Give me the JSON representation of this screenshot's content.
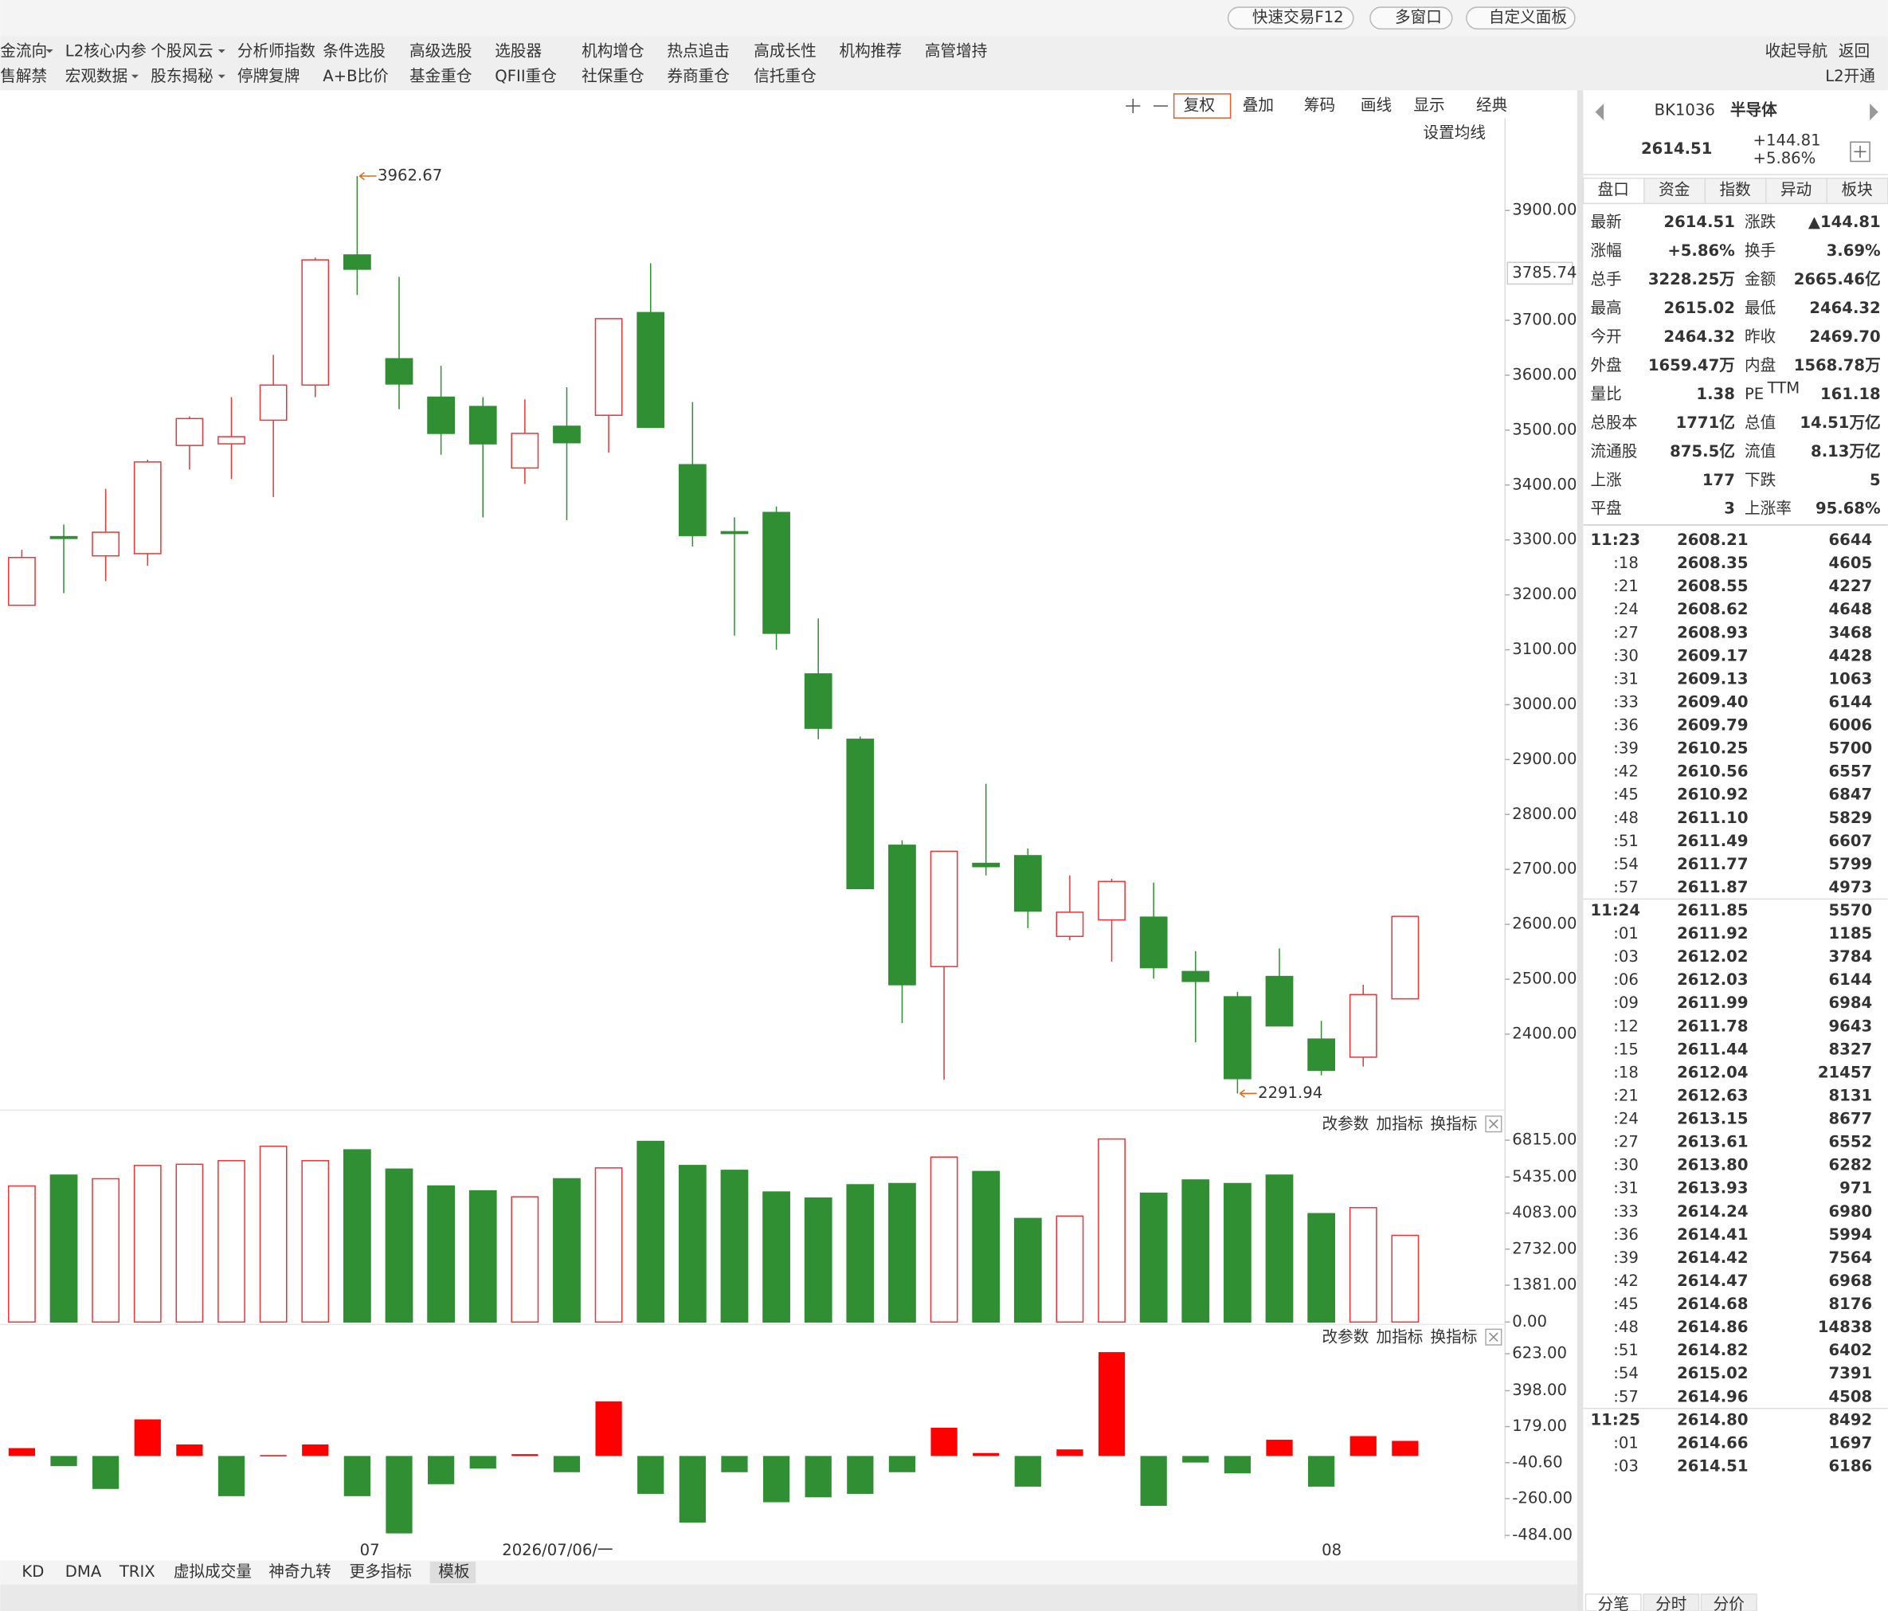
{
  "topbar": {
    "buttons": [
      "快速交易F12",
      "多窗口",
      "自定义面板"
    ]
  },
  "menu": {
    "row1": [
      "金流向",
      "L2核心内参",
      "个股风云",
      "分析师指数",
      "条件选股",
      "高级选股",
      "选股器",
      "机构增仓",
      "热点追击",
      "高成长性",
      "机构推荐",
      "高管增持"
    ],
    "row2": [
      "售解禁",
      "宏观数据",
      "股东揭秘",
      "停牌复牌",
      "A+B比价",
      "基金重仓",
      "QFII重仓",
      "社保重仓",
      "券商重仓",
      "信托重仓"
    ],
    "right": [
      "收起导航",
      "返回"
    ],
    "l2": "L2开通"
  },
  "toolbar": {
    "items": [
      "复权",
      "叠加",
      "筹码",
      "画线",
      "显示",
      "经典"
    ],
    "ma_setting": "设置均线"
  },
  "kline": {
    "ylim": [
      2266,
      4064
    ],
    "yticks": [
      {
        "value": 2400,
        "label": "2400.00"
      },
      {
        "value": 2500,
        "label": "2500.00"
      },
      {
        "value": 2600,
        "label": "2600.00"
      },
      {
        "value": 2700,
        "label": "2700.00"
      },
      {
        "value": 2800,
        "label": "2800.00"
      },
      {
        "value": 2900,
        "label": "2900.00"
      },
      {
        "value": 3000,
        "label": "3000.00"
      },
      {
        "value": 3100,
        "label": "3100.00"
      },
      {
        "value": 3200,
        "label": "3200.00"
      },
      {
        "value": 3300,
        "label": "3300.00"
      },
      {
        "value": 3400,
        "label": "3400.00"
      },
      {
        "value": 3500,
        "label": "3500.00"
      },
      {
        "value": 3600,
        "label": "3600.00"
      },
      {
        "value": 3700,
        "label": "3700.00"
      },
      {
        "value": 3900,
        "label": "3900.00"
      }
    ],
    "marker": 3785.74,
    "candles": [
      {
        "open": 3181,
        "high": 3282,
        "low": 3181,
        "close": 3268
      },
      {
        "open": 3306,
        "high": 3328,
        "low": 3203,
        "close": 3305
      },
      {
        "open": 3271,
        "high": 3393,
        "low": 3225,
        "close": 3314
      },
      {
        "open": 3275,
        "high": 3446,
        "low": 3253,
        "close": 3442
      },
      {
        "open": 3472,
        "high": 3525,
        "low": 3428,
        "close": 3521
      },
      {
        "open": 3475,
        "high": 3560,
        "low": 3411,
        "close": 3488
      },
      {
        "open": 3518,
        "high": 3637,
        "low": 3378,
        "close": 3582
      },
      {
        "open": 3582,
        "high": 3814,
        "low": 3560,
        "close": 3810
      },
      {
        "open": 3819,
        "high": 3962.67,
        "low": 3746,
        "close": 3793
      },
      {
        "open": 3630,
        "high": 3779,
        "low": 3538,
        "close": 3584
      },
      {
        "open": 3560,
        "high": 3617,
        "low": 3455,
        "close": 3494
      },
      {
        "open": 3543,
        "high": 3560,
        "low": 3341,
        "close": 3475
      },
      {
        "open": 3431,
        "high": 3556,
        "low": 3402,
        "close": 3494
      },
      {
        "open": 3507,
        "high": 3578,
        "low": 3336,
        "close": 3477
      },
      {
        "open": 3527,
        "high": 3703,
        "low": 3459,
        "close": 3703
      },
      {
        "open": 3714,
        "high": 3804,
        "low": 3505,
        "close": 3505
      },
      {
        "open": 3437,
        "high": 3551,
        "low": 3288,
        "close": 3308
      },
      {
        "open": 3315,
        "high": 3341,
        "low": 3126,
        "close": 3312
      },
      {
        "open": 3350,
        "high": 3361,
        "low": 3100,
        "close": 3130
      },
      {
        "open": 3056,
        "high": 3157,
        "low": 2937,
        "close": 2957
      },
      {
        "open": 2937,
        "high": 2942,
        "low": 2665,
        "close": 2665
      },
      {
        "open": 2744,
        "high": 2753,
        "low": 2420,
        "close": 2490
      },
      {
        "open": 2523,
        "high": 2733,
        "low": 2317,
        "close": 2733
      },
      {
        "open": 2711,
        "high": 2856,
        "low": 2689,
        "close": 2705
      },
      {
        "open": 2725,
        "high": 2738,
        "low": 2593,
        "close": 2624
      },
      {
        "open": 2578,
        "high": 2689,
        "low": 2571,
        "close": 2622
      },
      {
        "open": 2608,
        "high": 2683,
        "low": 2532,
        "close": 2678
      },
      {
        "open": 2613,
        "high": 2676,
        "low": 2501,
        "close": 2521
      },
      {
        "open": 2514,
        "high": 2551,
        "low": 2385,
        "close": 2496
      },
      {
        "open": 2468,
        "high": 2477,
        "low": 2291.94,
        "close": 2319
      },
      {
        "open": 2505,
        "high": 2556,
        "low": 2415,
        "close": 2415
      },
      {
        "open": 2391,
        "high": 2424,
        "low": 2325,
        "close": 2334
      },
      {
        "open": 2358,
        "high": 2490,
        "low": 2341,
        "close": 2472
      },
      {
        "open": 2464.32,
        "high": 2615.02,
        "low": 2464.32,
        "close": 2614.51
      }
    ]
  },
  "volume": {
    "ylim": [
      0,
      7130
    ],
    "yticks": [
      {
        "value": 0,
        "label": "0.00"
      },
      {
        "value": 1381,
        "label": "1381.00"
      },
      {
        "value": 2732,
        "label": "2732.00"
      },
      {
        "value": 4083,
        "label": "4083.00"
      },
      {
        "value": 5435,
        "label": "5435.00"
      },
      {
        "value": 6815,
        "label": "6815.00"
      }
    ],
    "values": [
      5100,
      5506,
      5370,
      5867,
      5912,
      6047,
      6589,
      6047,
      6454,
      5732,
      5100,
      4919,
      4694,
      5370,
      5777,
      6770,
      5867,
      5686,
      4874,
      4648,
      5145,
      5190,
      6183,
      5641,
      3881,
      3971,
      6860,
      4829,
      5325,
      5190,
      5506,
      4062,
      4287,
      3249
    ]
  },
  "macd": {
    "ylim": [
      -490,
      655
    ],
    "yticks": [
      {
        "value": 623,
        "label": "623.00"
      },
      {
        "value": 398,
        "label": "398.00"
      },
      {
        "value": 179,
        "label": "179.00"
      },
      {
        "value": -40.6,
        "label": "-40.60"
      },
      {
        "value": -260,
        "label": "-260.00"
      },
      {
        "value": -484,
        "label": "-484.00"
      }
    ],
    "values": [
      48,
      -62,
      -201,
      223,
      70,
      -245,
      5,
      70,
      -245,
      -472,
      -172,
      -77,
      11,
      -99,
      333,
      -231,
      -406,
      -99,
      -282,
      -252,
      -231,
      -99,
      172,
      18,
      -187,
      40,
      633,
      -304,
      -40,
      -106,
      99,
      -187,
      121,
      92
    ]
  },
  "pane_buttons": [
    "改参数",
    "加指标",
    "换指标"
  ],
  "xlabels": [
    "07",
    "2026/07/06/一",
    "08"
  ],
  "indicator_tabs": [
    "KD",
    "DMA",
    "TRIX",
    "虚拟成交量",
    "神奇九转",
    "更多指标",
    "模板"
  ],
  "quote": {
    "code": "BK1036",
    "name": "半导体",
    "price": "2614.51",
    "change": "+144.81",
    "pct": "+5.86%",
    "tabs": [
      "盘口",
      "资金",
      "指数",
      "异动",
      "板块"
    ],
    "rows": [
      {
        "l1": "最新",
        "v1": "2614.51",
        "c1": "#e0202a",
        "l2": "涨跌",
        "v2": "▲144.81",
        "c2": "#e0202a"
      },
      {
        "l1": "涨幅",
        "v1": "+5.86%",
        "c1": "#e0202a",
        "l2": "换手",
        "v2": "3.69%",
        "c2": "#222"
      },
      {
        "l1": "总手",
        "v1": "3228.25万",
        "c1": "#222",
        "l2": "金额",
        "v2": "2665.46亿",
        "c2": "#1a6fc4"
      },
      {
        "l1": "最高",
        "v1": "2615.02",
        "c1": "#e0202a",
        "l2": "最低",
        "v2": "2464.32",
        "c2": "#0a9a0a"
      },
      {
        "l1": "今开",
        "v1": "2464.32",
        "c1": "#0a9a0a",
        "l2": "昨收",
        "v2": "2469.70",
        "c2": "#222"
      },
      {
        "l1": "外盘",
        "v1": "1659.47万",
        "c1": "#e0202a",
        "l2": "内盘",
        "v2": "1568.78万",
        "c2": "#0a9a0a"
      },
      {
        "l1": "量比",
        "v1": "1.38",
        "c1": "#e0202a",
        "l2": "PE",
        "l2sup": "TTM",
        "v2": "161.18",
        "c2": "#222"
      },
      {
        "l1": "总股本",
        "v1": "1771亿",
        "c1": "#222",
        "l2": "总值",
        "v2": "14.51万亿",
        "c2": "#222"
      },
      {
        "l1": "流通股",
        "v1": "875.5亿",
        "c1": "#222",
        "l2": "流值",
        "v2": "8.13万亿",
        "c2": "#222"
      },
      {
        "l1": "上涨",
        "v1": "177",
        "c1": "#e0202a",
        "l2": "下跌",
        "v2": "5",
        "c2": "#0a9a0a"
      },
      {
        "l1": "平盘",
        "v1": "3",
        "c1": "#222",
        "l2": "上涨率",
        "v2": "95.68%",
        "c2": "#222"
      }
    ],
    "ticks": [
      {
        "t": "11:23",
        "p": "2608.21",
        "v": "6644",
        "c": "r"
      },
      {
        "t": ":18",
        "p": "2608.35",
        "v": "4605",
        "c": "r"
      },
      {
        "t": ":21",
        "p": "2608.55",
        "v": "4227",
        "c": "r"
      },
      {
        "t": ":24",
        "p": "2608.62",
        "v": "4648",
        "c": "r"
      },
      {
        "t": ":27",
        "p": "2608.93",
        "v": "3468",
        "c": "r"
      },
      {
        "t": ":30",
        "p": "2609.17",
        "v": "4428",
        "c": "r"
      },
      {
        "t": ":31",
        "p": "2609.13",
        "v": "1063",
        "c": "g"
      },
      {
        "t": ":33",
        "p": "2609.40",
        "v": "6144",
        "c": "r"
      },
      {
        "t": ":36",
        "p": "2609.79",
        "v": "6006",
        "c": "r"
      },
      {
        "t": ":39",
        "p": "2610.25",
        "v": "5700",
        "c": "r"
      },
      {
        "t": ":42",
        "p": "2610.56",
        "v": "6557",
        "c": "r"
      },
      {
        "t": ":45",
        "p": "2610.92",
        "v": "6847",
        "c": "r"
      },
      {
        "t": ":48",
        "p": "2611.10",
        "v": "5829",
        "c": "r"
      },
      {
        "t": ":51",
        "p": "2611.49",
        "v": "6607",
        "c": "r"
      },
      {
        "t": ":54",
        "p": "2611.77",
        "v": "5799",
        "c": "r"
      },
      {
        "t": ":57",
        "p": "2611.87",
        "v": "4973",
        "c": "r"
      },
      {
        "t": "11:24",
        "p": "2611.85",
        "v": "5570",
        "c": "g"
      },
      {
        "t": ":01",
        "p": "2611.92",
        "v": "1185",
        "c": "r"
      },
      {
        "t": ":03",
        "p": "2612.02",
        "v": "3784",
        "c": "r"
      },
      {
        "t": ":06",
        "p": "2612.03",
        "v": "6144",
        "c": "r"
      },
      {
        "t": ":09",
        "p": "2611.99",
        "v": "6984",
        "c": "g"
      },
      {
        "t": ":12",
        "p": "2611.78",
        "v": "9643",
        "c": "g"
      },
      {
        "t": ":15",
        "p": "2611.44",
        "v": "8327",
        "c": "g"
      },
      {
        "t": ":18",
        "p": "2612.04",
        "v": "21457",
        "c": "r"
      },
      {
        "t": ":21",
        "p": "2612.63",
        "v": "8131",
        "c": "r"
      },
      {
        "t": ":24",
        "p": "2613.15",
        "v": "8677",
        "c": "r"
      },
      {
        "t": ":27",
        "p": "2613.61",
        "v": "6552",
        "c": "r"
      },
      {
        "t": ":30",
        "p": "2613.80",
        "v": "6282",
        "c": "r"
      },
      {
        "t": ":31",
        "p": "2613.93",
        "v": "971",
        "c": "r"
      },
      {
        "t": ":33",
        "p": "2614.24",
        "v": "6980",
        "c": "r"
      },
      {
        "t": ":36",
        "p": "2614.41",
        "v": "5994",
        "c": "r"
      },
      {
        "t": ":39",
        "p": "2614.42",
        "v": "7564",
        "c": "r"
      },
      {
        "t": ":42",
        "p": "2614.47",
        "v": "6968",
        "c": "r"
      },
      {
        "t": ":45",
        "p": "2614.68",
        "v": "8176",
        "c": "r"
      },
      {
        "t": ":48",
        "p": "2614.86",
        "v": "14838",
        "c": "r"
      },
      {
        "t": ":51",
        "p": "2614.82",
        "v": "6402",
        "c": "g"
      },
      {
        "t": ":54",
        "p": "2615.02",
        "v": "7391",
        "c": "r"
      },
      {
        "t": ":57",
        "p": "2614.96",
        "v": "4508",
        "c": "g"
      },
      {
        "t": "11:25",
        "p": "2614.80",
        "v": "8492",
        "c": "g"
      },
      {
        "t": ":01",
        "p": "2614.66",
        "v": "1697",
        "c": "g"
      },
      {
        "t": ":03",
        "p": "2614.51",
        "v": "6186",
        "c": "r"
      }
    ],
    "bottom_tabs": [
      "分笔",
      "分时",
      "分价"
    ]
  }
}
